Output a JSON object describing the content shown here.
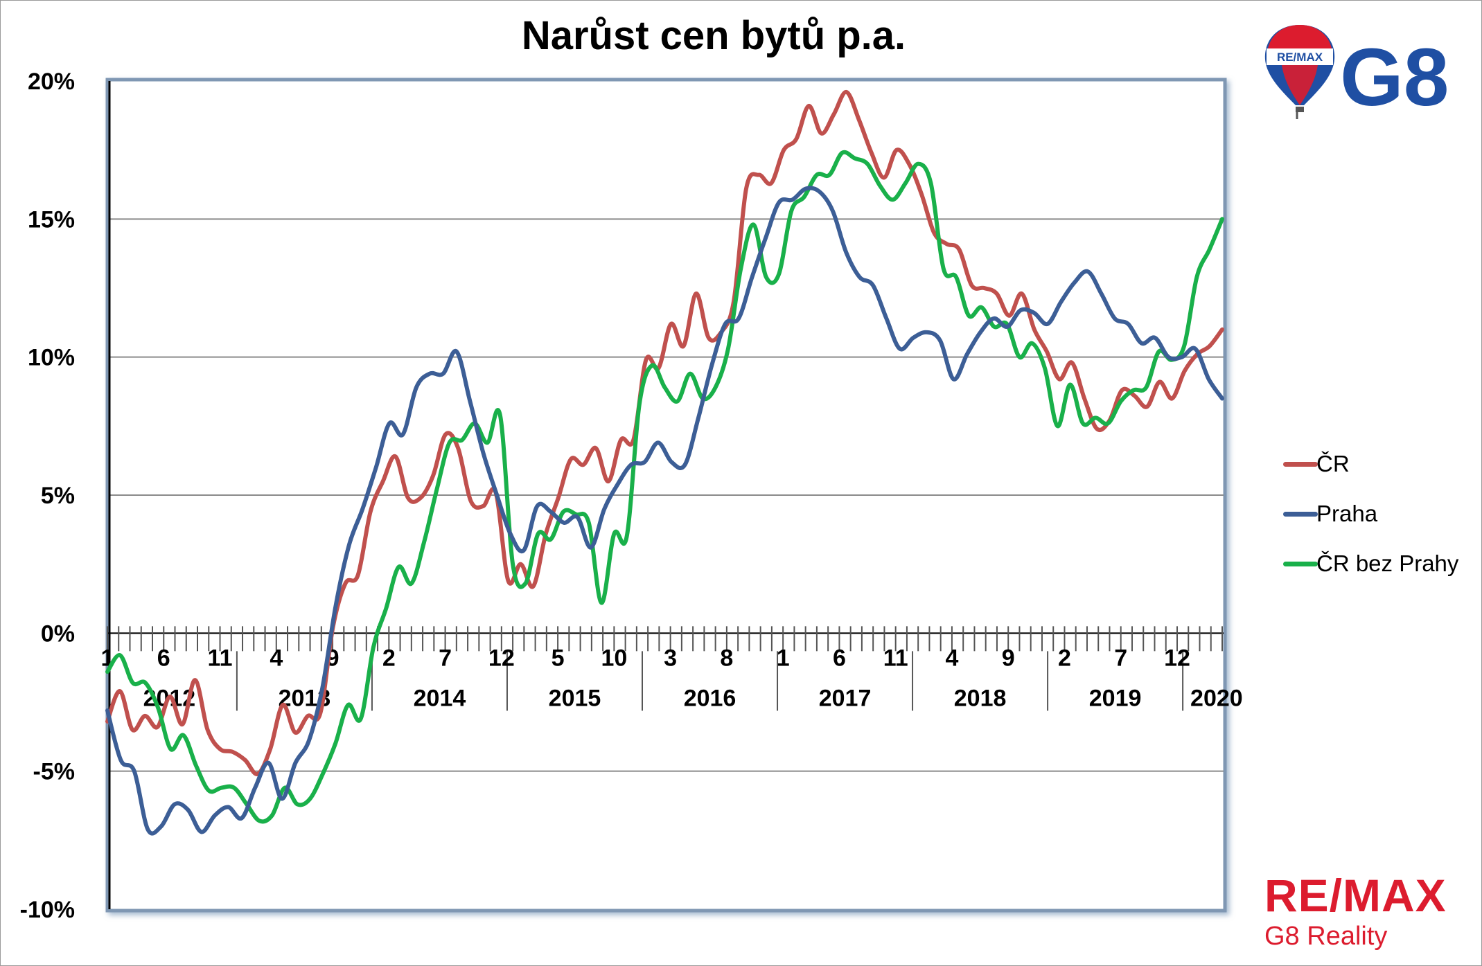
{
  "chart_data": {
    "type": "line",
    "title": "Narůst cen bytů p.a.",
    "xlabel": "",
    "ylabel": "",
    "ylim": [
      -10,
      20
    ],
    "y_ticks": [
      {
        "value": 20,
        "label": "20%"
      },
      {
        "value": 15,
        "label": "15%"
      },
      {
        "value": 10,
        "label": "10%"
      },
      {
        "value": 5,
        "label": "5%"
      },
      {
        "value": 0,
        "label": "0%"
      },
      {
        "value": -5,
        "label": "-5%"
      },
      {
        "value": -10,
        "label": "-10%"
      }
    ],
    "x_month_ticks": [
      {
        "index": 0,
        "label": "1"
      },
      {
        "index": 5,
        "label": "6"
      },
      {
        "index": 10,
        "label": "11"
      },
      {
        "index": 15,
        "label": "4"
      },
      {
        "index": 20,
        "label": "9"
      },
      {
        "index": 25,
        "label": "2"
      },
      {
        "index": 30,
        "label": "7"
      },
      {
        "index": 35,
        "label": "12"
      },
      {
        "index": 40,
        "label": "5"
      },
      {
        "index": 45,
        "label": "10"
      },
      {
        "index": 50,
        "label": "3"
      },
      {
        "index": 55,
        "label": "8"
      },
      {
        "index": 60,
        "label": "1"
      },
      {
        "index": 65,
        "label": "6"
      },
      {
        "index": 70,
        "label": "11"
      },
      {
        "index": 75,
        "label": "4"
      },
      {
        "index": 80,
        "label": "9"
      },
      {
        "index": 85,
        "label": "2"
      },
      {
        "index": 90,
        "label": "7"
      },
      {
        "index": 95,
        "label": "12"
      }
    ],
    "x_year_labels": [
      {
        "center": 5.5,
        "label": "2012"
      },
      {
        "center": 17.5,
        "label": "2013"
      },
      {
        "center": 29.5,
        "label": "2014"
      },
      {
        "center": 41.5,
        "label": "2015"
      },
      {
        "center": 53.5,
        "label": "2016"
      },
      {
        "center": 65.5,
        "label": "2017"
      },
      {
        "center": 77.5,
        "label": "2018"
      },
      {
        "center": 89.5,
        "label": "2019"
      },
      {
        "center": 98.5,
        "label": "2020"
      }
    ],
    "grid": true,
    "legend_position": "right",
    "series": [
      {
        "name": "ČR",
        "color": "#c0504d",
        "values": [
          -3.2,
          -2.1,
          -3.5,
          -3.0,
          -3.4,
          -2.3,
          -3.3,
          -1.7,
          -3.5,
          -4.2,
          -4.3,
          -4.6,
          -5.1,
          -4.2,
          -2.6,
          -3.6,
          -3.0,
          -2.9,
          0.2,
          1.8,
          2.1,
          4.4,
          5.5,
          6.4,
          4.9,
          4.9,
          5.7,
          7.2,
          6.7,
          4.8,
          4.6,
          5.1,
          1.9,
          2.5,
          1.7,
          3.6,
          4.9,
          6.3,
          6.1,
          6.7,
          5.5,
          7.0,
          7.0,
          9.9,
          9.6,
          11.2,
          10.4,
          12.3,
          10.7,
          10.9,
          12.0,
          16.1,
          16.6,
          16.3,
          17.5,
          17.9,
          19.1,
          18.1,
          18.8,
          19.6,
          18.6,
          17.4,
          16.5,
          17.5,
          17.0,
          15.9,
          14.5,
          14.1,
          13.9,
          12.6,
          12.5,
          12.3,
          11.5,
          12.3,
          11.0,
          10.2,
          9.2,
          9.8,
          8.5,
          7.4,
          7.7,
          8.8,
          8.6,
          8.2,
          9.1,
          8.5,
          9.5,
          10.1,
          10.4,
          11.0
        ]
      },
      {
        "name": "Praha",
        "color": "#3c5e96",
        "values": [
          -2.8,
          -4.6,
          -5.0,
          -7.1,
          -7.0,
          -6.2,
          -6.4,
          -7.2,
          -6.6,
          -6.3,
          -6.7,
          -5.6,
          -4.7,
          -6.0,
          -4.7,
          -3.9,
          -2.0,
          1.0,
          3.2,
          4.5,
          6.0,
          7.6,
          7.2,
          8.9,
          9.4,
          9.4,
          10.2,
          8.4,
          6.5,
          5.0,
          3.6,
          3.0,
          4.6,
          4.4,
          4.0,
          4.2,
          3.1,
          4.5,
          5.4,
          6.1,
          6.2,
          6.9,
          6.2,
          6.1,
          7.8,
          9.7,
          11.2,
          11.4,
          12.9,
          14.3,
          15.6,
          15.7,
          16.1,
          16.0,
          15.3,
          13.8,
          12.9,
          12.6,
          11.4,
          10.3,
          10.7,
          10.9,
          10.6,
          9.2,
          10.1,
          10.9,
          11.4,
          11.1,
          11.7,
          11.6,
          11.2,
          12.0,
          12.7,
          13.1,
          12.3,
          11.4,
          11.2,
          10.5,
          10.7,
          10.0,
          10.0,
          10.3,
          9.2,
          8.5
        ]
      },
      {
        "name": "ČR bez Prahy",
        "color": "#19b04a",
        "values": [
          -1.4,
          -0.8,
          -1.8,
          -1.8,
          -2.7,
          -4.2,
          -3.7,
          -4.8,
          -5.7,
          -5.6,
          -5.6,
          -6.2,
          -6.8,
          -6.6,
          -5.6,
          -6.2,
          -6.0,
          -5.1,
          -4.0,
          -2.6,
          -3.1,
          -0.5,
          0.9,
          2.4,
          1.8,
          3.3,
          5.2,
          6.9,
          7.0,
          7.6,
          6.9,
          7.9,
          2.5,
          1.8,
          3.6,
          3.4,
          4.4,
          4.3,
          4.0,
          1.1,
          3.6,
          3.5,
          8.3,
          9.7,
          8.9,
          8.4,
          9.4,
          8.5,
          8.9,
          10.3,
          13.2,
          14.8,
          12.9,
          13.0,
          15.3,
          15.8,
          16.6,
          16.6,
          17.4,
          17.2,
          17.0,
          16.2,
          15.7,
          16.3,
          17.0,
          16.3,
          13.2,
          12.9,
          11.5,
          11.8,
          11.1,
          11.2,
          10.0,
          10.5,
          9.6,
          7.5,
          9.0,
          7.6,
          7.8,
          7.6,
          8.4,
          8.8,
          8.9,
          10.2,
          9.9,
          10.4,
          12.9,
          13.9,
          15.0
        ]
      }
    ]
  },
  "branding": {
    "top_logo_text": "G8",
    "balloon_band_text": "RE/MAX",
    "bottom_brand_big": "RE/MAX",
    "bottom_brand_small": "G8 Reality"
  }
}
